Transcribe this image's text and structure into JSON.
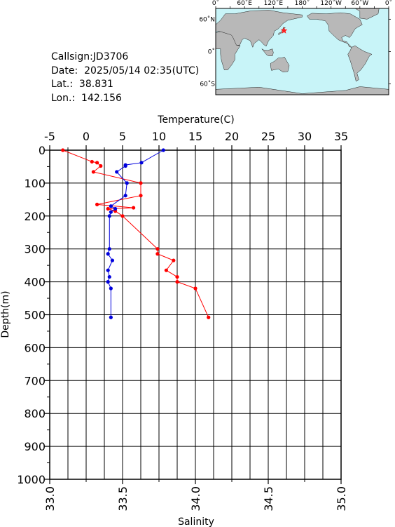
{
  "station": {
    "callsign": "Callsign:JD3706",
    "date": "Date:  2025/05/14 02:35(UTC)",
    "lat": "Lat.:  38.831",
    "lon": "Lon.:  142.156"
  },
  "map": {
    "lon_labels": [
      "0˚",
      "60˚E",
      "120˚E",
      "180˚",
      "120˚W",
      "60˚W",
      "0˚"
    ],
    "lat_labels": [
      "60˚N",
      "0˚",
      "60˚S"
    ],
    "ocean_color": "#c8f4f8",
    "land_color": "#b8b8b8",
    "marker_color": "#ff2020",
    "marker": {
      "lon": 142.156,
      "lat": 38.831
    }
  },
  "chart_data": {
    "type": "line",
    "ylabel": "Depth(m)",
    "ylim": [
      1000,
      0
    ],
    "yticks": [
      0,
      100,
      200,
      300,
      400,
      500,
      600,
      700,
      800,
      900,
      1000
    ],
    "top_axis": {
      "label": "Temperature(C)",
      "range": [
        -5,
        35
      ],
      "ticks": [
        "-5",
        "0",
        "5",
        "10",
        "15",
        "20",
        "25",
        "30",
        "35"
      ]
    },
    "bottom_axis": {
      "label": "Salinity",
      "range": [
        33.0,
        35.0
      ],
      "ticks": [
        "33.0",
        "33.5",
        "34.0",
        "34.5",
        "35.0"
      ]
    },
    "grid": true,
    "series": [
      {
        "color": "#ff0000",
        "axis": "top",
        "points": [
          [
            -3.2,
            0
          ],
          [
            0.8,
            35
          ],
          [
            1.5,
            38
          ],
          [
            2.0,
            48
          ],
          [
            1.0,
            66
          ],
          [
            7.5,
            100
          ],
          [
            7.5,
            138
          ],
          [
            1.5,
            165
          ],
          [
            6.5,
            175
          ],
          [
            3.0,
            178
          ],
          [
            4.0,
            185
          ],
          [
            5.0,
            200
          ],
          [
            9.8,
            300
          ],
          [
            9.8,
            315
          ],
          [
            12.0,
            335
          ],
          [
            11.0,
            365
          ],
          [
            12.5,
            385
          ],
          [
            12.5,
            400
          ],
          [
            15.0,
            420
          ],
          [
            16.8,
            508
          ]
        ]
      },
      {
        "color": "#0000dd",
        "axis": "bottom",
        "points": [
          [
            33.78,
            0
          ],
          [
            33.63,
            38
          ],
          [
            33.52,
            45
          ],
          [
            33.52,
            48
          ],
          [
            33.46,
            66
          ],
          [
            33.53,
            100
          ],
          [
            33.52,
            138
          ],
          [
            33.42,
            170
          ],
          [
            33.45,
            178
          ],
          [
            33.42,
            188
          ],
          [
            33.41,
            200
          ],
          [
            33.41,
            300
          ],
          [
            33.4,
            315
          ],
          [
            33.43,
            335
          ],
          [
            33.4,
            365
          ],
          [
            33.41,
            385
          ],
          [
            33.4,
            400
          ],
          [
            33.42,
            420
          ],
          [
            33.42,
            508
          ]
        ]
      }
    ]
  }
}
